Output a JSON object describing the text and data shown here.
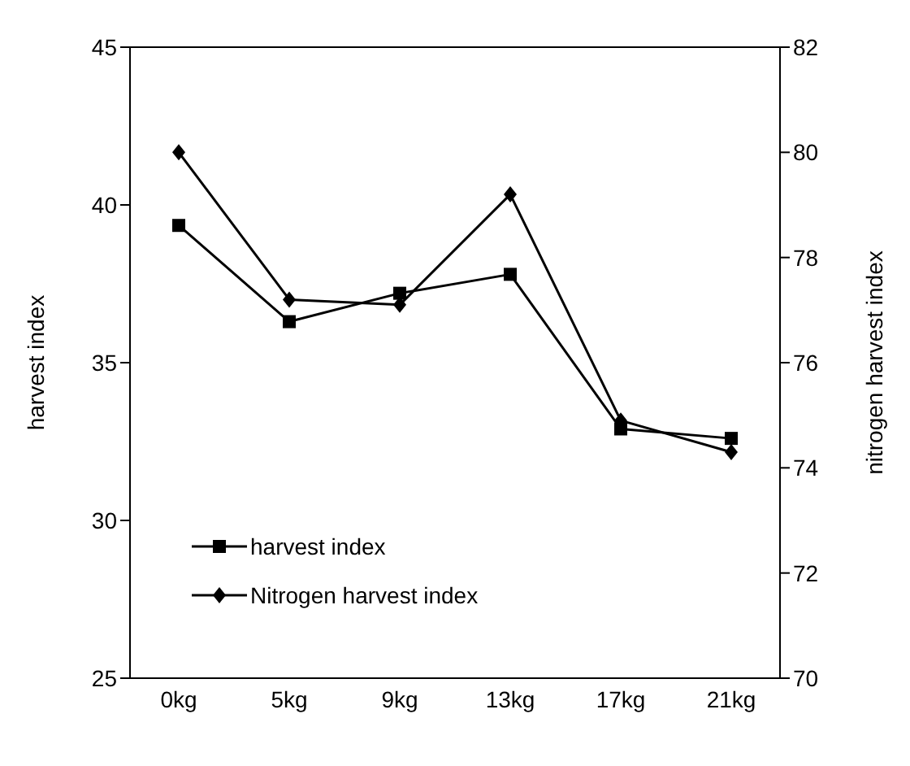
{
  "chart_data": {
    "type": "line",
    "categories": [
      "0kg",
      "5kg",
      "9kg",
      "13kg",
      "17kg",
      "21kg"
    ],
    "ylabel": "harvest index",
    "y2label": "nitrogen harvest index",
    "ylim": [
      25,
      45
    ],
    "yticks": [
      25,
      30,
      35,
      40,
      45
    ],
    "y2lim": [
      70,
      82
    ],
    "y2ticks": [
      70,
      72,
      74,
      76,
      78,
      80,
      82
    ],
    "series": [
      {
        "name": "harvest index",
        "color": "#000000",
        "marker": "square",
        "values": [
          39.35,
          36.3,
          37.2,
          37.8,
          32.9,
          32.6
        ]
      },
      {
        "name": "Nitrogen harvest index",
        "color": "#000000",
        "marker": "diamond",
        "axis": "y2",
        "values": [
          80.0,
          77.2,
          77.1,
          79.2,
          74.9,
          74.3
        ]
      }
    ],
    "legend": "bottom left",
    "grid": false,
    "line_style": "solid"
  }
}
